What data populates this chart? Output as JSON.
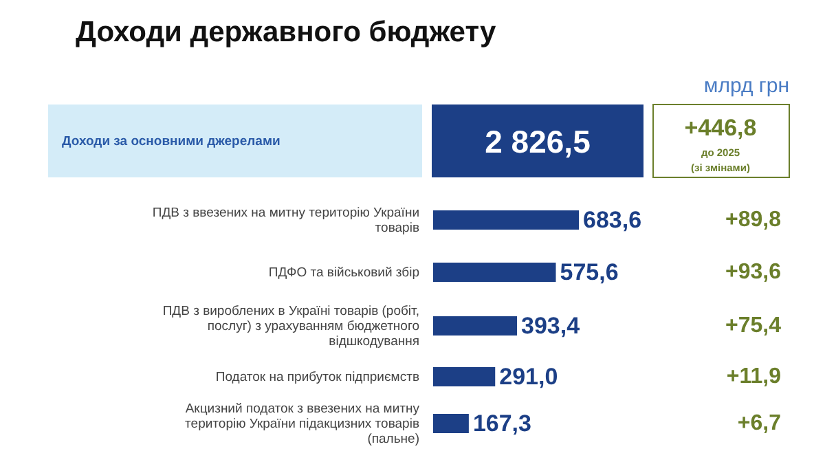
{
  "chart_data": {
    "type": "bar",
    "orientation": "horizontal",
    "title": "Доходи державного бюджету",
    "categories": [
      "ПДВ з ввезених на митну територію України\nтоварів",
      "ПДФО та військовий збір",
      "ПДВ з вироблених в Україні товарів (робіт,\nпослуг) з урахуванням бюджетного\nвідшкодування",
      "Податок на прибуток підприємств",
      "Акцизний податок з ввезених на митну\nтериторію України підакцизних товарів\n(пальне)"
    ],
    "values": [
      683.6,
      575.6,
      393.4,
      291.0,
      167.3
    ],
    "value_labels": [
      "683,6",
      "575,6",
      "393,4",
      "291,0",
      "167,3"
    ],
    "color": "#1c3f86",
    "annotations": [
      "млрд грн",
      "Доходи за основними джерелами",
      "2 826,5",
      "+446,8",
      "до 2025",
      "(зі змінами)",
      "+89,8",
      "+93,6",
      "+75,4",
      "+11,9",
      "+6,7"
    ]
  }
}
